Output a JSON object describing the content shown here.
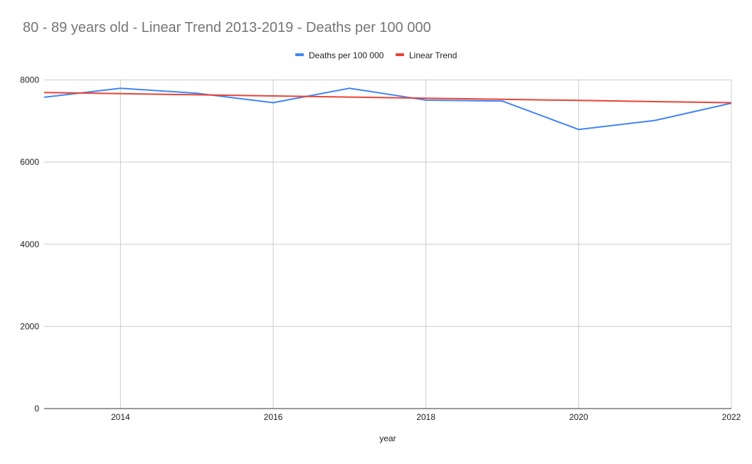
{
  "chart_data": {
    "type": "line",
    "title": "80 - 89 years old - Linear Trend 2013-2019 - Deaths per 100 000",
    "xlabel": "year",
    "ylabel": "",
    "x": [
      2013,
      2014,
      2015,
      2016,
      2017,
      2018,
      2019,
      2020,
      2021,
      2022
    ],
    "xlim": [
      2013,
      2022
    ],
    "ylim": [
      0,
      8000
    ],
    "xticks": [
      "2014",
      "2016",
      "2018",
      "2020",
      "2022"
    ],
    "yticks": [
      "0",
      "2000",
      "4000",
      "6000",
      "8000"
    ],
    "grid": true,
    "legend_position": "top",
    "series": [
      {
        "name": "Deaths per 100 000",
        "color": "#4285f4",
        "values": [
          7578,
          7797,
          7676,
          7446,
          7797,
          7509,
          7486,
          6795,
          7014,
          7434
        ]
      },
      {
        "name": "Linear Trend",
        "color": "#ea4335",
        "values": [
          7694,
          7666,
          7639,
          7611,
          7584,
          7556,
          7528,
          7501,
          7473,
          7446
        ]
      }
    ]
  }
}
